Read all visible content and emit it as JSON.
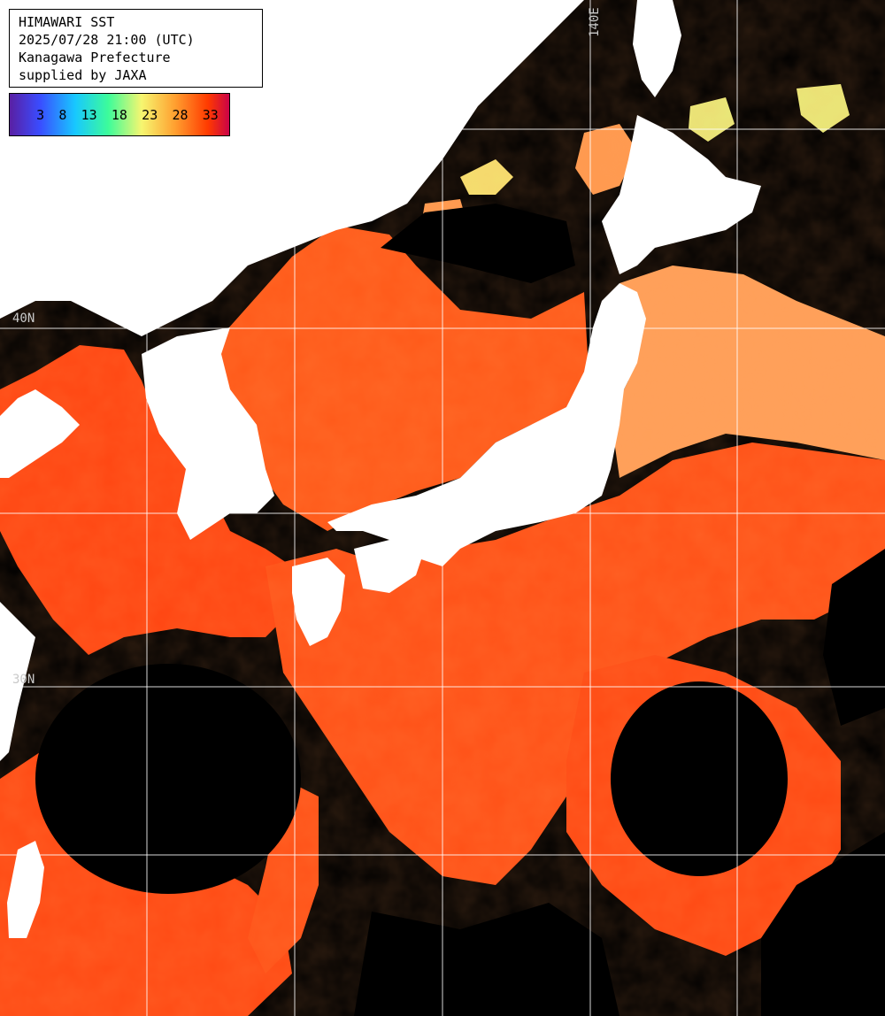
{
  "title": {
    "lines": [
      "HIMAWARI SST",
      "2025/07/28 21:00 (UTC)",
      "Kanagawa Prefecture",
      "supplied by JAXA"
    ]
  },
  "legend": {
    "ticks": [
      "3",
      "8",
      "13",
      "18",
      "23",
      "28",
      "33"
    ],
    "gradient_colors": [
      "#5a1ea0",
      "#3a4cff",
      "#18c8ff",
      "#3dfc9a",
      "#f6f670",
      "#ffa030",
      "#ff3a00",
      "#c8004a"
    ]
  },
  "grid_labels": {
    "lat_40": "40N",
    "lat_30": "30N",
    "lon_140": "140E"
  },
  "colors": {
    "land": "#ffffff",
    "cloud_no_data": "#000000",
    "sst_warm": "#ff4a10",
    "sst_mid": "#ff7a3a",
    "sst_cool": "#ffa860",
    "sst_cold": "#f0e070",
    "gridline": "#ffffff"
  }
}
